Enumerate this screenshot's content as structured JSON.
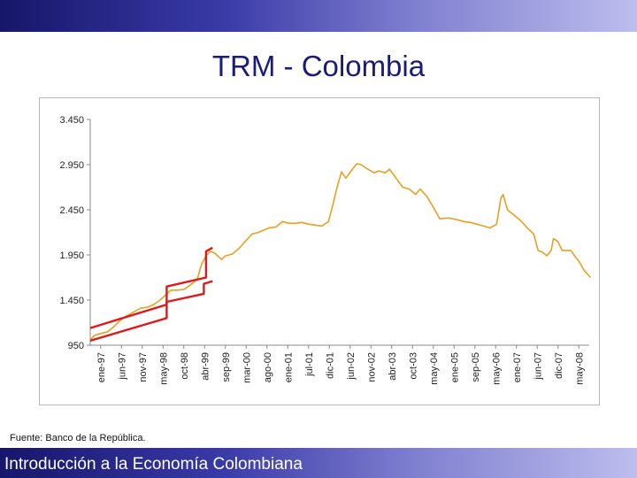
{
  "slide": {
    "title": "TRM - Colombia",
    "source": "Fuente: Banco de la República.",
    "footer": "Introducción a la Economía Colombiana"
  },
  "colors": {
    "band_dark": "#16166a",
    "band_light": "#bdbdee",
    "title": "#1b1b78",
    "series": "#e8a020",
    "band_lines": "#e01818"
  },
  "chart_data": {
    "type": "line",
    "title": "",
    "xlabel": "",
    "ylabel": "",
    "ylim": [
      950,
      3450
    ],
    "yticks": [
      950,
      1450,
      1950,
      2450,
      2950,
      3450
    ],
    "ytick_labels": [
      "950",
      "1.450",
      "1.950",
      "2.450",
      "2.950",
      "3.450"
    ],
    "x_tick_labels": [
      "ene-97",
      "jun-97",
      "nov-97",
      "may-98",
      "oct-98",
      "abr-99",
      "sep-99",
      "mar-00",
      "ago-00",
      "ene-01",
      "jul-01",
      "dic-01",
      "jun-02",
      "nov-02",
      "abr-03",
      "oct-03",
      "may-04",
      "ene-05",
      "sep-05",
      "may-06",
      "ene-07",
      "jun-07",
      "dic-07",
      "may-08"
    ],
    "grid": false,
    "legend": "none",
    "series": [
      {
        "values": [
          [
            1997.0,
            1010
          ],
          [
            1997.1,
            1060
          ],
          [
            1997.25,
            1080
          ],
          [
            1997.4,
            1100
          ],
          [
            1997.55,
            1160
          ],
          [
            1997.7,
            1230
          ],
          [
            1997.85,
            1280
          ],
          [
            1998.0,
            1320
          ],
          [
            1998.15,
            1360
          ],
          [
            1998.3,
            1370
          ],
          [
            1998.45,
            1400
          ],
          [
            1998.6,
            1450
          ],
          [
            1998.75,
            1520
          ],
          [
            1998.85,
            1560
          ],
          [
            1999.0,
            1560
          ],
          [
            1999.15,
            1570
          ],
          [
            1999.3,
            1620
          ],
          [
            1999.45,
            1680
          ],
          [
            1999.55,
            1850
          ],
          [
            1999.65,
            1940
          ],
          [
            1999.75,
            1990
          ],
          [
            1999.85,
            1970
          ],
          [
            2000.0,
            1900
          ],
          [
            2000.1,
            1940
          ],
          [
            2000.25,
            1960
          ],
          [
            2000.4,
            2020
          ],
          [
            2000.55,
            2100
          ],
          [
            2000.7,
            2180
          ],
          [
            2000.85,
            2200
          ],
          [
            2001.0,
            2230
          ],
          [
            2001.1,
            2250
          ],
          [
            2001.25,
            2260
          ],
          [
            2001.4,
            2320
          ],
          [
            2001.55,
            2300
          ],
          [
            2001.7,
            2300
          ],
          [
            2001.85,
            2310
          ],
          [
            2002.0,
            2290
          ],
          [
            2002.15,
            2280
          ],
          [
            2002.3,
            2270
          ],
          [
            2002.45,
            2320
          ],
          [
            2002.55,
            2500
          ],
          [
            2002.65,
            2700
          ],
          [
            2002.75,
            2870
          ],
          [
            2002.85,
            2800
          ],
          [
            2003.0,
            2900
          ],
          [
            2003.1,
            2960
          ],
          [
            2003.2,
            2950
          ],
          [
            2003.35,
            2900
          ],
          [
            2003.5,
            2860
          ],
          [
            2003.6,
            2880
          ],
          [
            2003.75,
            2860
          ],
          [
            2003.85,
            2900
          ],
          [
            2004.0,
            2800
          ],
          [
            2004.15,
            2700
          ],
          [
            2004.3,
            2680
          ],
          [
            2004.45,
            2620
          ],
          [
            2004.55,
            2680
          ],
          [
            2004.7,
            2600
          ],
          [
            2004.85,
            2480
          ],
          [
            2005.0,
            2350
          ],
          [
            2005.2,
            2360
          ],
          [
            2005.4,
            2340
          ],
          [
            2005.55,
            2320
          ],
          [
            2005.7,
            2310
          ],
          [
            2005.85,
            2290
          ],
          [
            2006.0,
            2270
          ],
          [
            2006.15,
            2250
          ],
          [
            2006.3,
            2290
          ],
          [
            2006.4,
            2580
          ],
          [
            2006.45,
            2620
          ],
          [
            2006.55,
            2450
          ],
          [
            2006.7,
            2390
          ],
          [
            2006.85,
            2330
          ],
          [
            2007.0,
            2250
          ],
          [
            2007.15,
            2180
          ],
          [
            2007.25,
            2000
          ],
          [
            2007.35,
            1980
          ],
          [
            2007.45,
            1940
          ],
          [
            2007.55,
            2000
          ],
          [
            2007.6,
            2130
          ],
          [
            2007.7,
            2100
          ],
          [
            2007.8,
            2000
          ],
          [
            2007.9,
            2000
          ],
          [
            2008.0,
            2000
          ],
          [
            2008.1,
            1930
          ],
          [
            2008.2,
            1870
          ],
          [
            2008.3,
            1780
          ],
          [
            2008.45,
            1700
          ]
        ]
      },
      {
        "values": [
          [
            1997.0,
            1140
          ],
          [
            1998.75,
            1400
          ],
          [
            1998.75,
            1600
          ],
          [
            1999.65,
            1700
          ],
          [
            1999.65,
            1990
          ],
          [
            1999.8,
            2030
          ]
        ]
      },
      {
        "values": [
          [
            1997.0,
            1000
          ],
          [
            1998.75,
            1250
          ],
          [
            1998.75,
            1430
          ],
          [
            1999.6,
            1520
          ],
          [
            1999.6,
            1630
          ],
          [
            1999.8,
            1660
          ]
        ]
      }
    ]
  }
}
